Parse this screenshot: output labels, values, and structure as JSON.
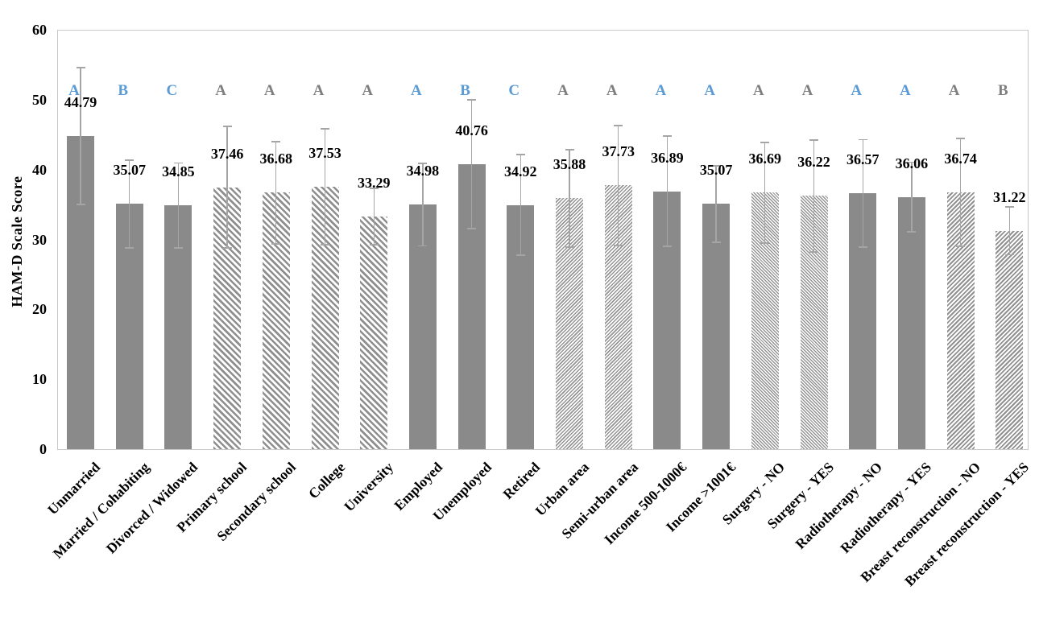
{
  "chart_data": {
    "type": "bar",
    "title": "",
    "xlabel": "",
    "ylabel": "HAM-D Scale Score",
    "ylim": [
      0,
      60
    ],
    "yticks": [
      0,
      10,
      20,
      30,
      40,
      50,
      60
    ],
    "grid": false,
    "legend_position": "none",
    "categories": [
      "Unmarried",
      "Married / Cohabiting",
      "Divorced / Widowed",
      "Primary school",
      "Secondary school",
      "College",
      "University",
      "Employed",
      "Unemployed",
      "Retired",
      "Urban area",
      "Semi-urban area",
      "Income 500-1000€",
      "Income >1001€",
      "Surgery - NO",
      "Surgery - YES",
      "Radiotherapy - NO",
      "Radiotherapy - YES",
      "Breast reconstruction - NO",
      "Breast reconstruction - YES"
    ],
    "values": [
      44.79,
      35.07,
      34.85,
      37.46,
      36.68,
      37.53,
      33.29,
      34.98,
      40.76,
      34.92,
      35.88,
      37.73,
      36.89,
      35.07,
      36.69,
      36.22,
      36.57,
      36.06,
      36.74,
      31.22
    ],
    "errors": [
      9.8,
      6.3,
      6.1,
      8.7,
      7.3,
      8.3,
      4.0,
      5.9,
      9.2,
      7.2,
      7.0,
      8.6,
      7.9,
      5.5,
      7.2,
      8.0,
      7.7,
      5.0,
      7.7,
      3.4
    ],
    "sig_letters": [
      "A",
      "B",
      "C",
      "A",
      "A",
      "A",
      "A",
      "A",
      "B",
      "C",
      "A",
      "A",
      "A",
      "A",
      "A",
      "A",
      "A",
      "A",
      "A",
      "B"
    ],
    "letter_colors": [
      "#5b9bd5",
      "#5b9bd5",
      "#5b9bd5",
      "#7f7f7f",
      "#7f7f7f",
      "#7f7f7f",
      "#7f7f7f",
      "#5b9bd5",
      "#5b9bd5",
      "#5b9bd5",
      "#7f7f7f",
      "#7f7f7f",
      "#5b9bd5",
      "#5b9bd5",
      "#7f7f7f",
      "#7f7f7f",
      "#5b9bd5",
      "#5b9bd5",
      "#7f7f7f",
      "#7f7f7f"
    ],
    "bar_patterns": [
      "solid",
      "solid",
      "solid",
      "hatch-back-wide",
      "hatch-back-wide",
      "hatch-back-wide",
      "hatch-back-wide",
      "solid",
      "solid",
      "solid",
      "hatch-fwd-thin",
      "hatch-fwd-thin",
      "solid",
      "solid",
      "hatch-back-thin",
      "hatch-back-thin",
      "solid",
      "solid",
      "hatch-fwd-med",
      "hatch-fwd-med"
    ],
    "colors": {
      "bar_solid": "#8a8a8a",
      "hatch_stripe": "#919191",
      "error_bar": "#a5a5a5",
      "letter_blue": "#5b9bd5",
      "letter_gray": "#7f7f7f",
      "plot_border": "#c9c9c9",
      "text": "#000000"
    }
  }
}
